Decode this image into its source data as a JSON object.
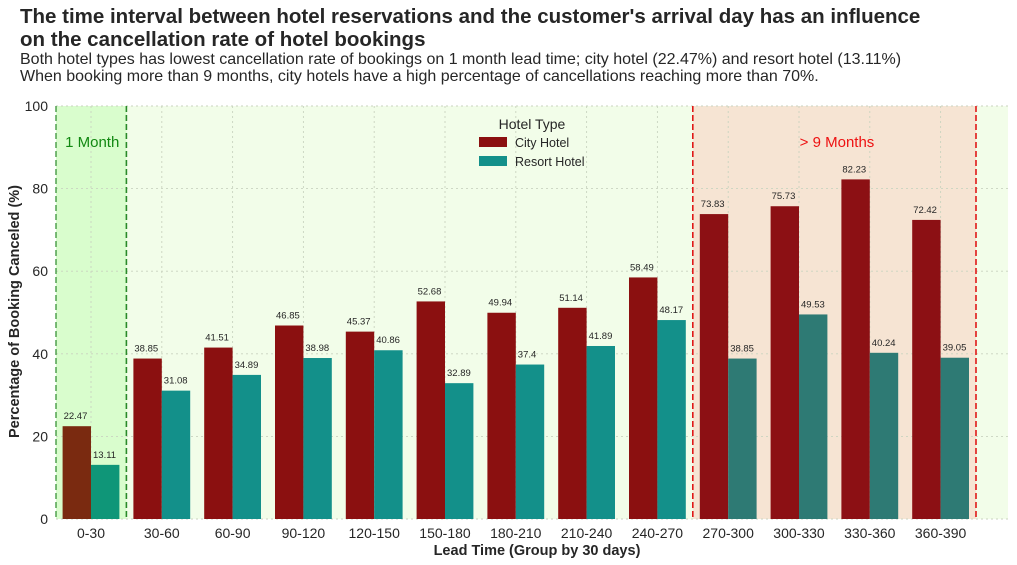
{
  "header": {
    "title_line1": "The time interval between hotel reservations and the customer's arrival day has an influence",
    "title_line2": "on the cancellation rate of hotel bookings",
    "subtitle_line1": "Both hotel types has lowest cancellation rate of bookings on 1 month lead time; city hotel (22.47%) and resort hotel (13.11%)",
    "subtitle_line2": "When booking more than 9 months, city hotels have a high percentage of cancellations reaching more than 70%."
  },
  "colors": {
    "city": "#8b1010",
    "resort": "#13908a",
    "city_first": "#7a2a10",
    "resort_first": "#0f9678",
    "city_late": "#8c1014",
    "resort_late": "#2e7a74",
    "plot_bg": "#f2fde9",
    "one_month_bg": "#d9fdcd",
    "nine_month_bg": "#f6e4d3",
    "one_month_line": "#2a8a2a",
    "nine_month_line": "#e01818",
    "one_month_text": "#118811",
    "nine_month_text": "#ee1111"
  },
  "chart_data": {
    "type": "bar",
    "title": "The time interval between hotel reservations and the customer's arrival day has an influence on the cancellation rate of hotel bookings",
    "xlabel": "Lead Time (Group by 30 days)",
    "ylabel": "Percentage of Booking Canceled (%)",
    "ylim": [
      0,
      100
    ],
    "yticks": [
      0,
      20,
      40,
      60,
      80,
      100
    ],
    "grid": true,
    "legend_title": "Hotel Type",
    "legend_position": "top-center",
    "categories": [
      "0-30",
      "30-60",
      "60-90",
      "90-120",
      "120-150",
      "150-180",
      "180-210",
      "210-240",
      "240-270",
      "270-300",
      "300-330",
      "330-360",
      "360-390"
    ],
    "series": [
      {
        "name": "City Hotel",
        "values": [
          22.47,
          38.85,
          41.51,
          46.85,
          45.37,
          52.68,
          49.94,
          51.14,
          58.49,
          73.83,
          75.73,
          82.23,
          72.42
        ]
      },
      {
        "name": "Resort Hotel",
        "values": [
          13.11,
          31.08,
          34.89,
          38.98,
          40.86,
          32.89,
          37.4,
          41.89,
          48.17,
          38.85,
          49.53,
          40.24,
          39.05
        ]
      }
    ],
    "annotations": [
      {
        "text": "1 Month",
        "region": "0-30"
      },
      {
        "text": "> 9 Months",
        "region": "270-300 to 360-390"
      }
    ]
  }
}
